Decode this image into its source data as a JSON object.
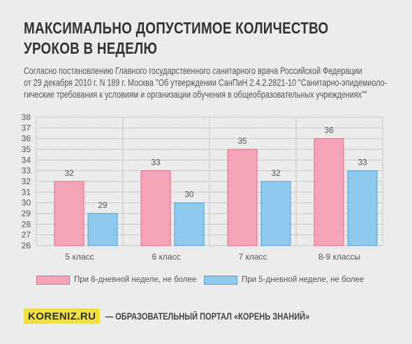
{
  "header": {
    "title_lines": [
      "МАКСИМАЛЬНО ДОПУСТИМОЕ КОЛИЧЕСТВО",
      "УРОКОВ В НЕДЕЛЮ"
    ],
    "subtitle_lines": [
      "Согласно постановлению Главного государственного санитарного врача Российской Федерации",
      "от 29 декабря 2010 г. N 189 г. Москва \"Об утверждении СанПиН 2.4.2.2821-10 \"Санитарно-эпидемиоло-",
      "гические требования к условиям и организации обучения в общеобразовательных учреждениях\"\""
    ]
  },
  "chart_data": {
    "type": "bar",
    "categories": [
      "5 класс",
      "6 класс",
      "7 класс",
      "8-9 классы"
    ],
    "series": [
      {
        "name": "При 6-дневной неделе, не более",
        "values": [
          32,
          33,
          35,
          36
        ],
        "color": "#f5a3b6",
        "stroke": "#e36a87"
      },
      {
        "name": "При 5-дневной неделе, не более",
        "values": [
          29,
          30,
          32,
          33
        ],
        "color": "#8fc9ee",
        "stroke": "#4ba3d8"
      }
    ],
    "ylim": [
      26,
      38
    ],
    "yticks": [
      26,
      27,
      28,
      29,
      30,
      31,
      32,
      33,
      34,
      35,
      36,
      37,
      38
    ],
    "grid": true,
    "legend": "bottom"
  },
  "footer": {
    "brand": "KORENIZ.RU",
    "text": "— ОБРАЗОВАТЕЛЬНЫЙ ПОРТАЛ «КОРЕНЬ ЗНАНИЙ»"
  }
}
